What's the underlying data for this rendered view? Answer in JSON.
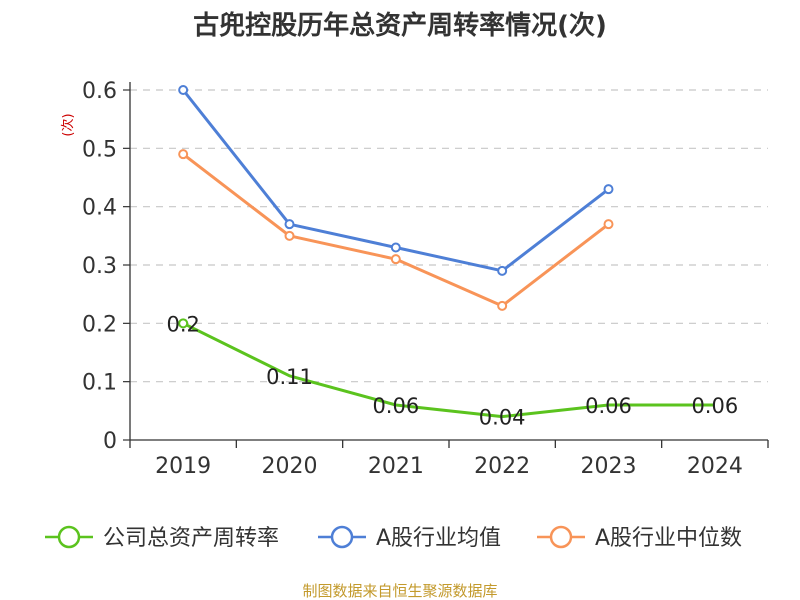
{
  "chart_data": {
    "type": "line",
    "title": "古兜控股历年总资产周转率情况(次)",
    "ylabel": "(次)",
    "xlabel": "",
    "categories": [
      "2019",
      "2020",
      "2021",
      "2022",
      "2023",
      "2024"
    ],
    "ylim": [
      0,
      0.6
    ],
    "yticks": [
      0,
      0.1,
      0.2,
      0.3,
      0.4,
      0.5,
      0.6
    ],
    "grid": true,
    "legend_position": "bottom",
    "series": [
      {
        "name": "公司总资产周转率",
        "color": "#5bc31e",
        "values": [
          0.2,
          0.11,
          0.06,
          0.04,
          0.06,
          0.06
        ],
        "labels": [
          "0.2",
          "0.11",
          "0.06",
          "0.04",
          "0.06",
          "0.06"
        ]
      },
      {
        "name": "A股行业均值",
        "color": "#4e7fd6",
        "values": [
          0.6,
          0.37,
          0.33,
          0.29,
          0.43,
          null
        ]
      },
      {
        "name": "A股行业中位数",
        "color": "#f89458",
        "values": [
          0.49,
          0.35,
          0.31,
          0.23,
          0.37,
          null
        ]
      }
    ],
    "source": "制图数据来自恒生聚源数据库"
  }
}
